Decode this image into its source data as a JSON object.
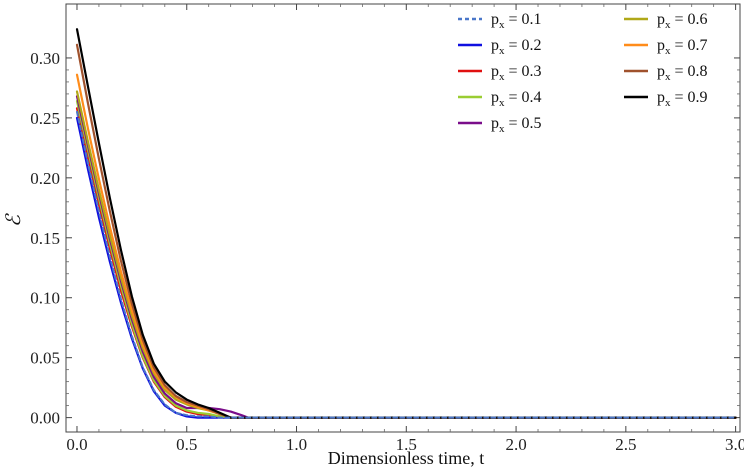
{
  "chart_data": {
    "type": "line",
    "xlabel": "Dimensionless time, t",
    "ylabel": "ℰ",
    "xlim": [
      -0.05,
      3.02
    ],
    "ylim": [
      -0.012,
      0.345
    ],
    "x_ticks": [
      "0.0",
      "0.5",
      "1.0",
      "1.5",
      "2.0",
      "2.5",
      "3.0"
    ],
    "y_ticks": [
      "0.00",
      "0.05",
      "0.10",
      "0.15",
      "0.20",
      "0.25",
      "0.30"
    ],
    "legend_position": "top-right",
    "series": [
      {
        "name": "p",
        "sub": "x",
        "value_text": " = 0.1",
        "color": "#4a77c9",
        "dashed": true,
        "x": [
          0,
          0.05,
          0.1,
          0.15,
          0.2,
          0.25,
          0.3,
          0.35,
          0.4,
          0.45,
          0.5,
          0.55,
          0.6,
          0.65,
          3.0
        ],
        "y": [
          0.255,
          0.212,
          0.172,
          0.134,
          0.099,
          0.068,
          0.042,
          0.023,
          0.011,
          0.004,
          0.002,
          0.001,
          0.001,
          0.0,
          0.0
        ]
      },
      {
        "name": "p",
        "sub": "x",
        "value_text": " = 0.2",
        "color": "#1010e0",
        "dashed": false,
        "x": [
          0,
          0.05,
          0.1,
          0.15,
          0.2,
          0.25,
          0.3,
          0.35,
          0.4,
          0.45,
          0.5,
          0.55,
          0.6,
          0.65,
          3.0
        ],
        "y": [
          0.25,
          0.207,
          0.167,
          0.13,
          0.096,
          0.066,
          0.041,
          0.022,
          0.01,
          0.004,
          0.001,
          0.0,
          0.0,
          0.0,
          0.0
        ]
      },
      {
        "name": "p",
        "sub": "x",
        "value_text": " = 0.3",
        "color": "#e01010",
        "dashed": false,
        "x": [
          0,
          0.05,
          0.1,
          0.15,
          0.2,
          0.25,
          0.3,
          0.35,
          0.4,
          0.45,
          0.5,
          0.55,
          0.6,
          0.65,
          0.7,
          3.0
        ],
        "y": [
          0.258,
          0.217,
          0.178,
          0.141,
          0.106,
          0.076,
          0.05,
          0.03,
          0.017,
          0.009,
          0.005,
          0.003,
          0.002,
          0.001,
          0.0,
          0.0
        ]
      },
      {
        "name": "p",
        "sub": "x",
        "value_text": " = 0.4",
        "color": "#9acd32",
        "dashed": false,
        "x": [
          0,
          0.05,
          0.1,
          0.15,
          0.2,
          0.25,
          0.3,
          0.35,
          0.4,
          0.45,
          0.5,
          0.55,
          0.6,
          0.65,
          0.7,
          3.0
        ],
        "y": [
          0.264,
          0.223,
          0.183,
          0.145,
          0.11,
          0.078,
          0.051,
          0.031,
          0.018,
          0.01,
          0.006,
          0.004,
          0.003,
          0.001,
          0.0,
          0.0
        ]
      },
      {
        "name": "p",
        "sub": "x",
        "value_text": " = 0.5",
        "color": "#7a0d8a",
        "dashed": false,
        "x": [
          0,
          0.05,
          0.1,
          0.15,
          0.2,
          0.25,
          0.3,
          0.35,
          0.4,
          0.45,
          0.5,
          0.55,
          0.6,
          0.65,
          0.7,
          0.75,
          0.78,
          3.0
        ],
        "y": [
          0.268,
          0.227,
          0.187,
          0.149,
          0.114,
          0.082,
          0.055,
          0.034,
          0.02,
          0.012,
          0.008,
          0.008,
          0.008,
          0.007,
          0.005,
          0.002,
          0.0,
          0.0
        ]
      },
      {
        "name": "p",
        "sub": "x",
        "value_text": " = 0.6",
        "color": "#b0a818",
        "dashed": false,
        "x": [
          0,
          0.05,
          0.1,
          0.15,
          0.2,
          0.25,
          0.3,
          0.35,
          0.4,
          0.45,
          0.5,
          0.55,
          0.6,
          0.65,
          0.7,
          3.0
        ],
        "y": [
          0.272,
          0.23,
          0.19,
          0.152,
          0.117,
          0.085,
          0.058,
          0.037,
          0.023,
          0.015,
          0.011,
          0.008,
          0.006,
          0.003,
          0.0,
          0.0
        ]
      },
      {
        "name": "p",
        "sub": "x",
        "value_text": " = 0.7",
        "color": "#ff8c1a",
        "dashed": false,
        "x": [
          0,
          0.05,
          0.1,
          0.15,
          0.2,
          0.25,
          0.3,
          0.35,
          0.4,
          0.45,
          0.5,
          0.55,
          0.6,
          0.65,
          0.7,
          3.0
        ],
        "y": [
          0.286,
          0.241,
          0.199,
          0.159,
          0.122,
          0.089,
          0.061,
          0.039,
          0.025,
          0.017,
          0.012,
          0.009,
          0.006,
          0.003,
          0.0,
          0.0
        ]
      },
      {
        "name": "p",
        "sub": "x",
        "value_text": " = 0.8",
        "color": "#a0522d",
        "dashed": false,
        "x": [
          0,
          0.05,
          0.1,
          0.15,
          0.2,
          0.25,
          0.3,
          0.35,
          0.4,
          0.45,
          0.5,
          0.55,
          0.6,
          0.65,
          0.7,
          3.0
        ],
        "y": [
          0.311,
          0.262,
          0.216,
          0.172,
          0.131,
          0.095,
          0.065,
          0.042,
          0.027,
          0.018,
          0.013,
          0.01,
          0.007,
          0.003,
          0.0,
          0.0
        ]
      },
      {
        "name": "p",
        "sub": "x",
        "value_text": " = 0.9",
        "color": "#000000",
        "dashed": false,
        "x": [
          0,
          0.05,
          0.1,
          0.15,
          0.2,
          0.25,
          0.3,
          0.35,
          0.4,
          0.45,
          0.5,
          0.55,
          0.6,
          0.65,
          0.7,
          3.0
        ],
        "y": [
          0.324,
          0.276,
          0.229,
          0.183,
          0.14,
          0.101,
          0.069,
          0.045,
          0.03,
          0.021,
          0.015,
          0.011,
          0.008,
          0.004,
          0.0,
          0.0
        ]
      }
    ]
  }
}
